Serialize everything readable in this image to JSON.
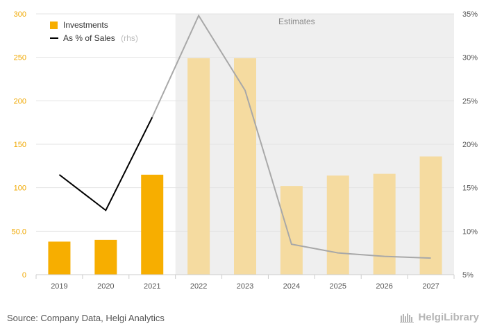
{
  "chart_data": {
    "type": "bar",
    "categories": [
      "2019",
      "2020",
      "2021",
      "2022",
      "2023",
      "2024",
      "2025",
      "2026",
      "2027"
    ],
    "series": [
      {
        "name": "Investments",
        "kind": "bar",
        "axis": "left",
        "values": [
          38,
          40,
          115,
          249,
          249,
          102,
          114,
          116,
          136
        ]
      },
      {
        "name": "As % of Sales",
        "name_suffix": "(rhs)",
        "kind": "line",
        "axis": "right",
        "values": [
          16.5,
          12.4,
          23.1,
          34.8,
          26.2,
          8.5,
          7.5,
          7.1,
          6.9
        ]
      }
    ],
    "estimates_label": "Estimates",
    "estimates_from": "2022",
    "ylim_left": [
      0,
      300
    ],
    "yticks_left": [
      "0",
      "50.0",
      "100",
      "150",
      "200",
      "250",
      "300"
    ],
    "ylim_right": [
      5,
      35
    ],
    "yticks_right": [
      "5%",
      "10%",
      "15%",
      "20%",
      "25%",
      "30%",
      "35%"
    ],
    "legend_position": "top-left",
    "colors": {
      "bar_actual": "#f7ae00",
      "bar_estimate": "#f5dba0",
      "line_actual": "#000000",
      "line_estimate": "#a8a8a8",
      "estimate_background": "#efefef"
    }
  },
  "footer": {
    "source": "Source: Company Data, Helgi Analytics",
    "logo": "HelgiLibrary"
  }
}
